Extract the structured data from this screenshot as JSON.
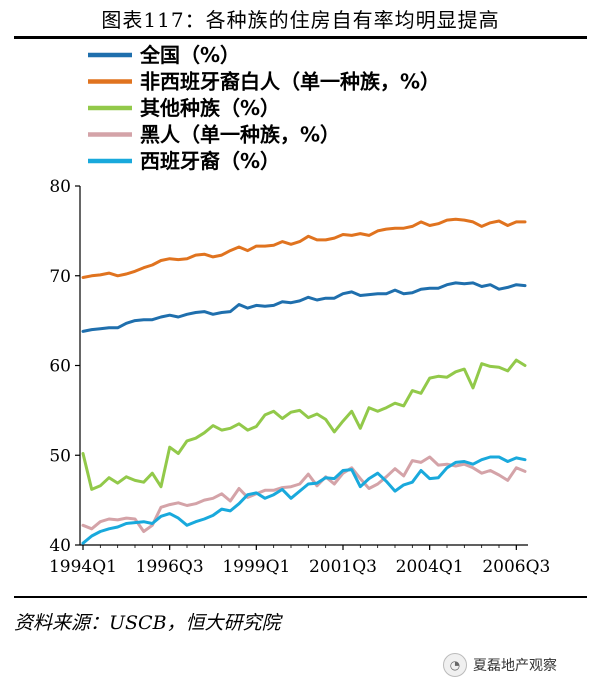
{
  "figure": {
    "title": "图表117：各种族的住房自有率均明显提高",
    "source": "资料来源：USCB，恒大研究院",
    "watermark": "夏磊地产观察"
  },
  "chart_data": {
    "type": "line",
    "ylim": [
      40,
      80
    ],
    "yticks": [
      40,
      50,
      60,
      70,
      80
    ],
    "xticks": [
      "1994Q1",
      "1996Q3",
      "1999Q1",
      "2001Q3",
      "2004Q1",
      "2006Q3"
    ],
    "quarters_start": "1994Q1",
    "quarters_end": "2006Q4",
    "grid": false,
    "legend_position": "top-left",
    "series": [
      {
        "name": "全国（%）",
        "color": "#1f6fad",
        "values": [
          63.8,
          64.0,
          64.1,
          64.2,
          64.2,
          64.7,
          65.0,
          65.1,
          65.1,
          65.4,
          65.6,
          65.4,
          65.7,
          65.9,
          66.0,
          65.7,
          65.9,
          66.0,
          66.8,
          66.4,
          66.7,
          66.6,
          66.7,
          67.1,
          67.0,
          67.2,
          67.6,
          67.3,
          67.5,
          67.5,
          68.0,
          68.2,
          67.8,
          67.9,
          68.0,
          68.0,
          68.4,
          68.0,
          68.1,
          68.5,
          68.6,
          68.6,
          69.0,
          69.2,
          69.1,
          69.2,
          68.8,
          69.0,
          68.5,
          68.7,
          69.0,
          68.9
        ]
      },
      {
        "name": "非西班牙裔白人（单一种族，%）",
        "color": "#e0731f",
        "values": [
          69.8,
          70.0,
          70.1,
          70.3,
          70.0,
          70.2,
          70.5,
          70.9,
          71.2,
          71.7,
          71.9,
          71.8,
          71.9,
          72.3,
          72.4,
          72.1,
          72.3,
          72.8,
          73.2,
          72.8,
          73.3,
          73.3,
          73.4,
          73.8,
          73.5,
          73.8,
          74.4,
          74.0,
          74.0,
          74.2,
          74.6,
          74.5,
          74.7,
          74.5,
          75.0,
          75.2,
          75.3,
          75.3,
          75.5,
          76.0,
          75.6,
          75.8,
          76.2,
          76.3,
          76.2,
          76.0,
          75.5,
          75.9,
          76.1,
          75.6,
          76.0,
          76.0
        ]
      },
      {
        "name": "其他种族（%）",
        "color": "#92c94a",
        "values": [
          50.2,
          46.2,
          46.6,
          47.5,
          46.9,
          47.6,
          47.2,
          47.0,
          48.0,
          46.5,
          50.9,
          50.2,
          51.6,
          51.9,
          52.5,
          53.3,
          52.8,
          53.0,
          53.5,
          52.8,
          53.2,
          54.5,
          54.9,
          54.1,
          54.8,
          55.0,
          54.2,
          54.6,
          54.0,
          52.6,
          53.8,
          54.9,
          53.0,
          55.3,
          54.9,
          55.3,
          55.8,
          55.5,
          57.2,
          56.9,
          58.6,
          58.8,
          58.7,
          59.3,
          59.6,
          57.5,
          60.2,
          59.9,
          59.8,
          59.4,
          60.6,
          60.0
        ]
      },
      {
        "name": "黑人（单一种族，%）",
        "color": "#d4a3a8",
        "values": [
          42.2,
          41.8,
          42.6,
          42.9,
          42.8,
          43.0,
          42.9,
          41.5,
          42.2,
          44.2,
          44.5,
          44.7,
          44.4,
          44.6,
          45.0,
          45.2,
          45.7,
          44.9,
          46.3,
          45.3,
          45.7,
          46.1,
          46.1,
          46.4,
          46.5,
          46.8,
          47.9,
          46.6,
          47.6,
          46.8,
          48.0,
          48.6,
          47.4,
          46.3,
          46.8,
          47.6,
          48.5,
          47.7,
          49.4,
          49.2,
          49.8,
          48.9,
          49.0,
          48.8,
          49.0,
          48.6,
          48.0,
          48.3,
          47.8,
          47.2,
          48.6,
          48.2
        ]
      },
      {
        "name": "西班牙裔（%）",
        "color": "#19a9dc",
        "values": [
          40.2,
          41.0,
          41.5,
          41.8,
          42.0,
          42.4,
          42.5,
          42.6,
          42.4,
          43.2,
          43.5,
          43.0,
          42.2,
          42.6,
          42.9,
          43.3,
          44.0,
          43.8,
          44.6,
          45.6,
          45.8,
          45.2,
          45.6,
          46.2,
          45.2,
          46.0,
          46.8,
          46.9,
          47.5,
          47.4,
          48.3,
          48.4,
          46.5,
          47.4,
          48.0,
          47.1,
          46.0,
          46.7,
          47.0,
          48.3,
          47.4,
          47.5,
          48.6,
          49.2,
          49.3,
          49.0,
          49.5,
          49.8,
          49.8,
          49.3,
          49.7,
          49.5
        ]
      }
    ]
  }
}
